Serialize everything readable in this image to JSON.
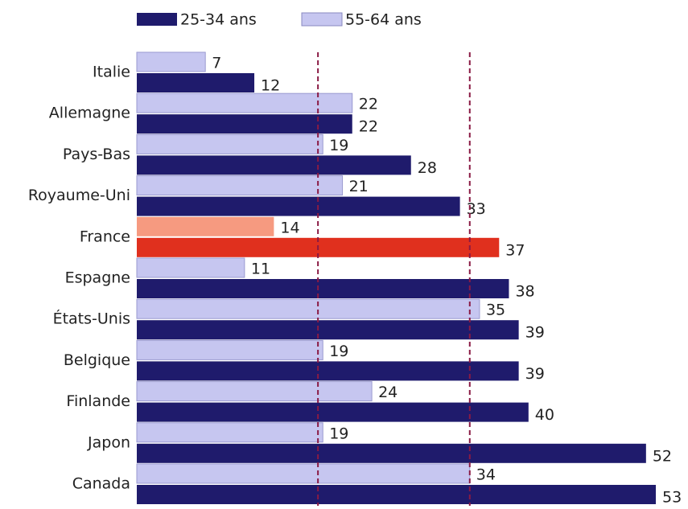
{
  "chart_data": {
    "type": "hbar",
    "categories": [
      "Italie",
      "Allemagne",
      "Pays-Bas",
      "Royaume-Uni",
      "France",
      "Espagne",
      "États-Unis",
      "Belgique",
      "Finlande",
      "Japon",
      "Canada"
    ],
    "series": [
      {
        "name": "25-34 ans",
        "color": "#1f1b6c",
        "highlight_color": "#e0301e",
        "values": [
          12,
          22,
          28,
          33,
          37,
          38,
          39,
          39,
          40,
          52,
          53
        ]
      },
      {
        "name": "55-64 ans",
        "color": "#c6c6f0",
        "highlight_color": "#f69a80",
        "values": [
          7,
          22,
          19,
          21,
          14,
          11,
          35,
          19,
          24,
          19,
          34
        ]
      }
    ],
    "highlight_index": 4,
    "reference_lines": [
      18.5,
      34
    ],
    "xlim": [
      0,
      53
    ]
  }
}
